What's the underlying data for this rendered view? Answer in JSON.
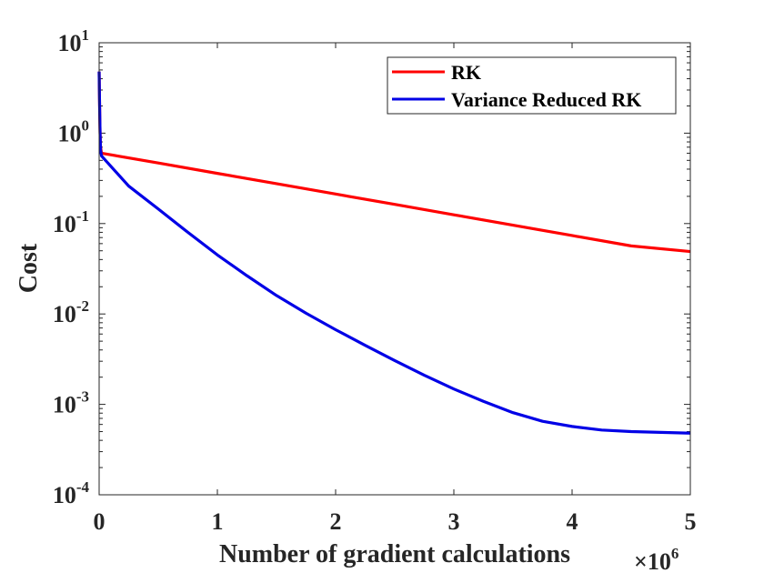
{
  "chart_data": {
    "type": "line",
    "title": "",
    "xlabel": "Number of gradient calculations",
    "ylabel": "Cost",
    "x_multiplier_label": "×10",
    "x_multiplier_exp": "6",
    "xlim": [
      0,
      5
    ],
    "ylim": [
      0.0001,
      10
    ],
    "yscale": "log",
    "x_ticks": [
      {
        "value": 0,
        "label": "0"
      },
      {
        "value": 1,
        "label": "1"
      },
      {
        "value": 2,
        "label": "2"
      },
      {
        "value": 3,
        "label": "3"
      },
      {
        "value": 4,
        "label": "4"
      },
      {
        "value": 5,
        "label": "5"
      }
    ],
    "y_ticks": [
      {
        "value": 10,
        "base": "10",
        "exp": "1"
      },
      {
        "value": 1,
        "base": "10",
        "exp": "0"
      },
      {
        "value": 0.1,
        "base": "10",
        "exp": "-1"
      },
      {
        "value": 0.01,
        "base": "10",
        "exp": "-2"
      },
      {
        "value": 0.001,
        "base": "10",
        "exp": "-3"
      },
      {
        "value": 0.0001,
        "base": "10",
        "exp": "-4"
      }
    ],
    "legend_position": "top-right",
    "series": [
      {
        "name": "RK",
        "color": "#ff0000",
        "x": [
          0,
          0.004,
          0.008,
          0.012,
          0.02,
          0.5,
          1,
          1.5,
          2,
          2.5,
          3,
          3.5,
          4,
          4.5,
          5
        ],
        "y": [
          4.8,
          2.0,
          1.0,
          0.7,
          0.6,
          0.468,
          0.359,
          0.276,
          0.212,
          0.163,
          0.125,
          0.096,
          0.0737,
          0.0566,
          0.049
        ]
      },
      {
        "name": "Variance Reduced RK",
        "color": "#0000e6",
        "x": [
          0,
          0.004,
          0.008,
          0.012,
          0.02,
          0.25,
          0.5,
          0.75,
          1,
          1.25,
          1.5,
          1.75,
          2,
          2.25,
          2.5,
          2.75,
          3,
          3.25,
          3.5,
          3.75,
          4,
          4.25,
          4.5,
          4.75,
          5
        ],
        "y": [
          4.8,
          2.0,
          1.0,
          0.65,
          0.56,
          0.26,
          0.145,
          0.08,
          0.045,
          0.0265,
          0.016,
          0.0102,
          0.0067,
          0.0045,
          0.00305,
          0.0021,
          0.00148,
          0.00108,
          0.00081,
          0.00065,
          0.00057,
          0.00052,
          0.0005,
          0.00049,
          0.00048
        ]
      }
    ]
  }
}
